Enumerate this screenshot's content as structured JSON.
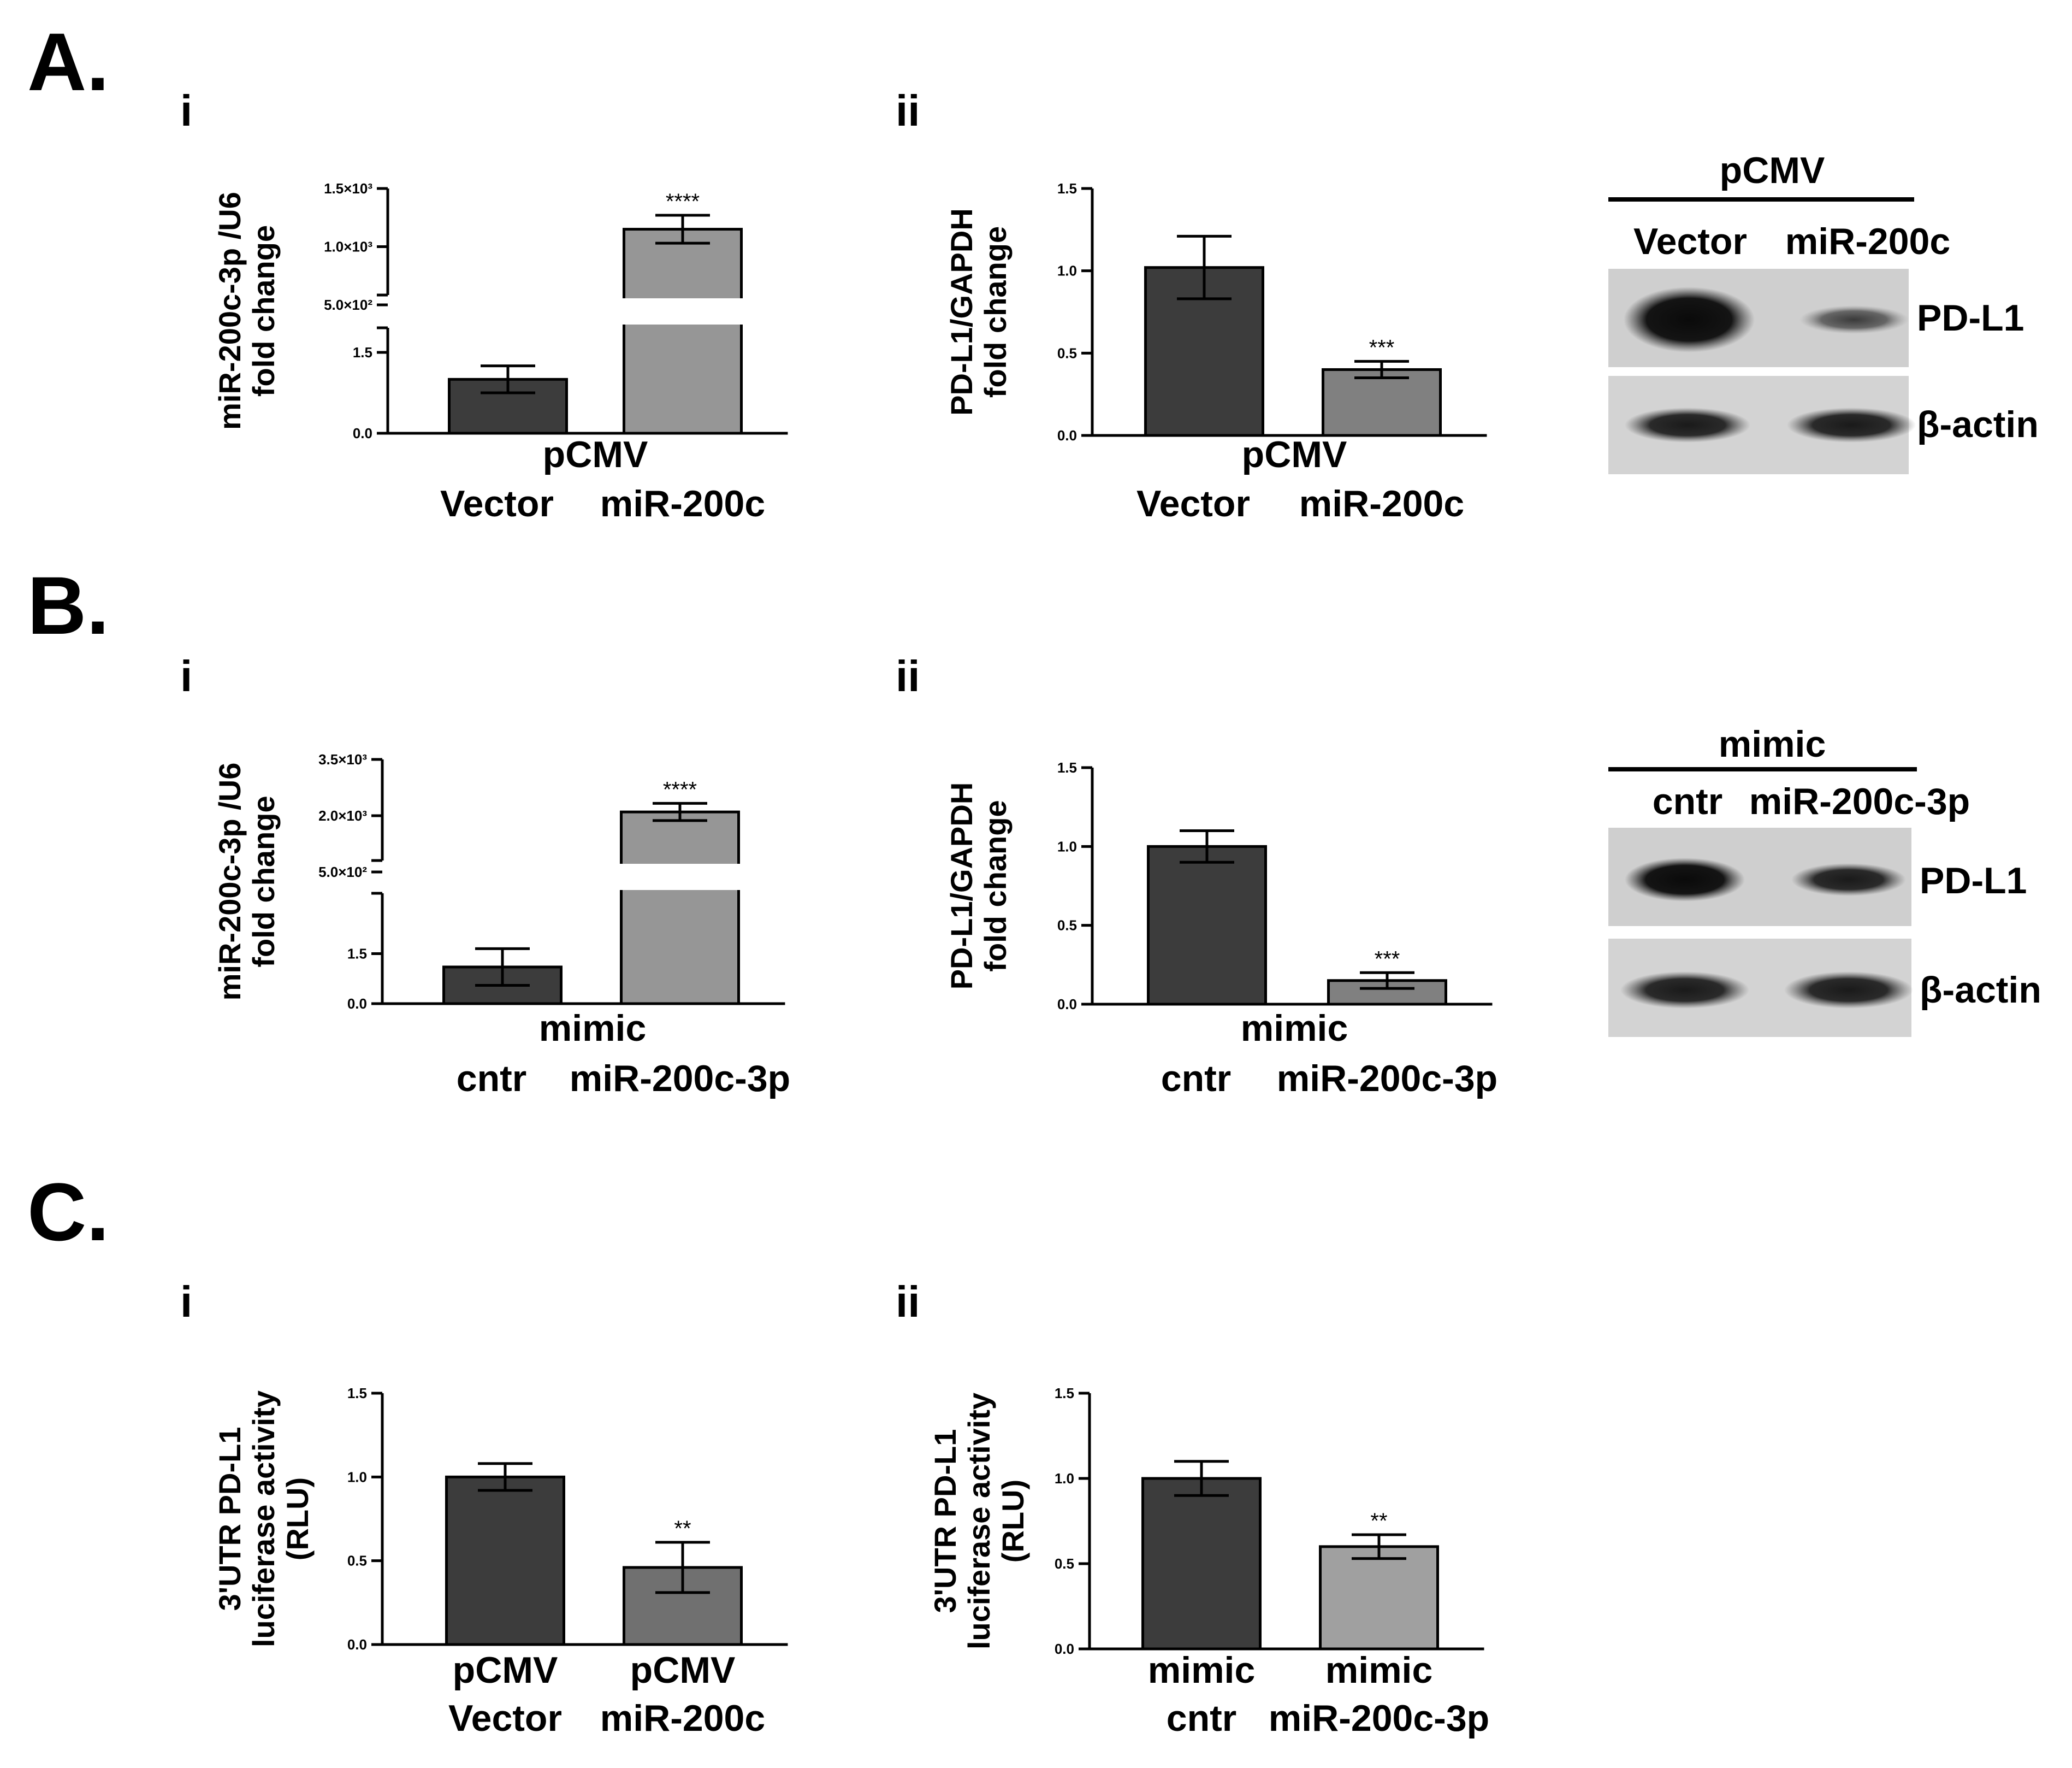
{
  "panels": {
    "A": {
      "letter": "A.",
      "sub_i": "i",
      "sub_ii": "ii"
    },
    "B": {
      "letter": "B.",
      "sub_i": "i",
      "sub_ii": "ii"
    },
    "C": {
      "letter": "C.",
      "sub_i": "i",
      "sub_ii": "ii"
    }
  },
  "blots": [
    {
      "id": "A",
      "header": "pCMV",
      "lanes": [
        "Vector",
        "miR-200c"
      ],
      "bands": [
        "PD-L1",
        "β-actin"
      ]
    },
    {
      "id": "B",
      "header": "mimic",
      "lanes": [
        "cntr",
        "miR-200c-3p"
      ],
      "bands": [
        "PD-L1",
        "β-actin"
      ]
    }
  ],
  "chart_data": [
    {
      "id": "A-i",
      "type": "bar",
      "broken_axis": true,
      "ylabel": [
        "miR-200c-3p /U6",
        "fold change"
      ],
      "categories": [
        "Vector",
        "miR-200c"
      ],
      "group_label": "pCMV",
      "values": [
        1.0,
        1150
      ],
      "errors": [
        0.25,
        120
      ],
      "colors": [
        "#3c3c3c",
        "#969696"
      ],
      "significance": [
        "",
        "****"
      ],
      "ylim_lower": [
        0,
        1.5
      ],
      "ticks_lower": [
        "0.0",
        "1.5"
      ],
      "ylim_upper": [
        500,
        1500
      ],
      "ticks_upper": [
        "5.0×10²",
        "1.0×10³",
        "1.5×10³"
      ]
    },
    {
      "id": "A-ii",
      "type": "bar",
      "ylabel": [
        "PD-L1/GAPDH",
        "fold change"
      ],
      "categories": [
        "Vector",
        "miR-200c"
      ],
      "group_label": "pCMV",
      "values": [
        1.02,
        0.4
      ],
      "errors": [
        0.19,
        0.05
      ],
      "colors": [
        "#3c3c3c",
        "#808080"
      ],
      "significance": [
        "",
        "***"
      ],
      "ylim": [
        0,
        1.5
      ],
      "ticks": [
        "0.0",
        "0.5",
        "1.0",
        "1.5"
      ]
    },
    {
      "id": "B-i",
      "type": "bar",
      "broken_axis": true,
      "ylabel": [
        "miR-200c-3p /U6",
        "fold change"
      ],
      "categories": [
        "cntr",
        "miR-200c-3p"
      ],
      "group_label": "mimic",
      "values": [
        1.1,
        2100
      ],
      "errors": [
        0.55,
        230
      ],
      "colors": [
        "#3c3c3c",
        "#969696"
      ],
      "significance": [
        "",
        "****"
      ],
      "ylim_lower": [
        0,
        2.0
      ],
      "ticks_lower": [
        "0.0",
        "1.5"
      ],
      "ylim_upper": [
        500,
        3500
      ],
      "ticks_upper": [
        "5.0×10²",
        "2.0×10³",
        "3.5×10³"
      ]
    },
    {
      "id": "B-ii",
      "type": "bar",
      "ylabel": [
        "PD-L1/GAPDH",
        "fold change"
      ],
      "categories": [
        "cntr",
        "miR-200c-3p"
      ],
      "group_label": "mimic",
      "values": [
        1.0,
        0.15
      ],
      "errors": [
        0.1,
        0.05
      ],
      "colors": [
        "#3c3c3c",
        "#808080"
      ],
      "significance": [
        "",
        "***"
      ],
      "ylim": [
        0,
        1.5
      ],
      "ticks": [
        "0.0",
        "0.5",
        "1.0",
        "1.5"
      ]
    },
    {
      "id": "C-i",
      "type": "bar",
      "ylabel": [
        "3'UTR PD-L1",
        "luciferase activity",
        "(RLU)"
      ],
      "categories": [
        "pCMV\nVector",
        "pCMV\nmiR-200c"
      ],
      "values": [
        1.0,
        0.46
      ],
      "errors": [
        0.08,
        0.15
      ],
      "colors": [
        "#3c3c3c",
        "#707070"
      ],
      "significance": [
        "",
        "**"
      ],
      "ylim": [
        0,
        1.5
      ],
      "ticks": [
        "0.0",
        "0.5",
        "1.0",
        "1.5"
      ]
    },
    {
      "id": "C-ii",
      "type": "bar",
      "ylabel": [
        "3'UTR PD-L1",
        "luciferase activity",
        "(RLU)"
      ],
      "categories": [
        "mimic\ncntr",
        "mimic\nmiR-200c-3p"
      ],
      "values": [
        1.0,
        0.6
      ],
      "errors": [
        0.1,
        0.07
      ],
      "colors": [
        "#3c3c3c",
        "#a0a0a0"
      ],
      "significance": [
        "",
        "**"
      ],
      "ylim": [
        0,
        1.5
      ],
      "ticks": [
        "0.0",
        "0.5",
        "1.0",
        "1.5"
      ]
    }
  ]
}
